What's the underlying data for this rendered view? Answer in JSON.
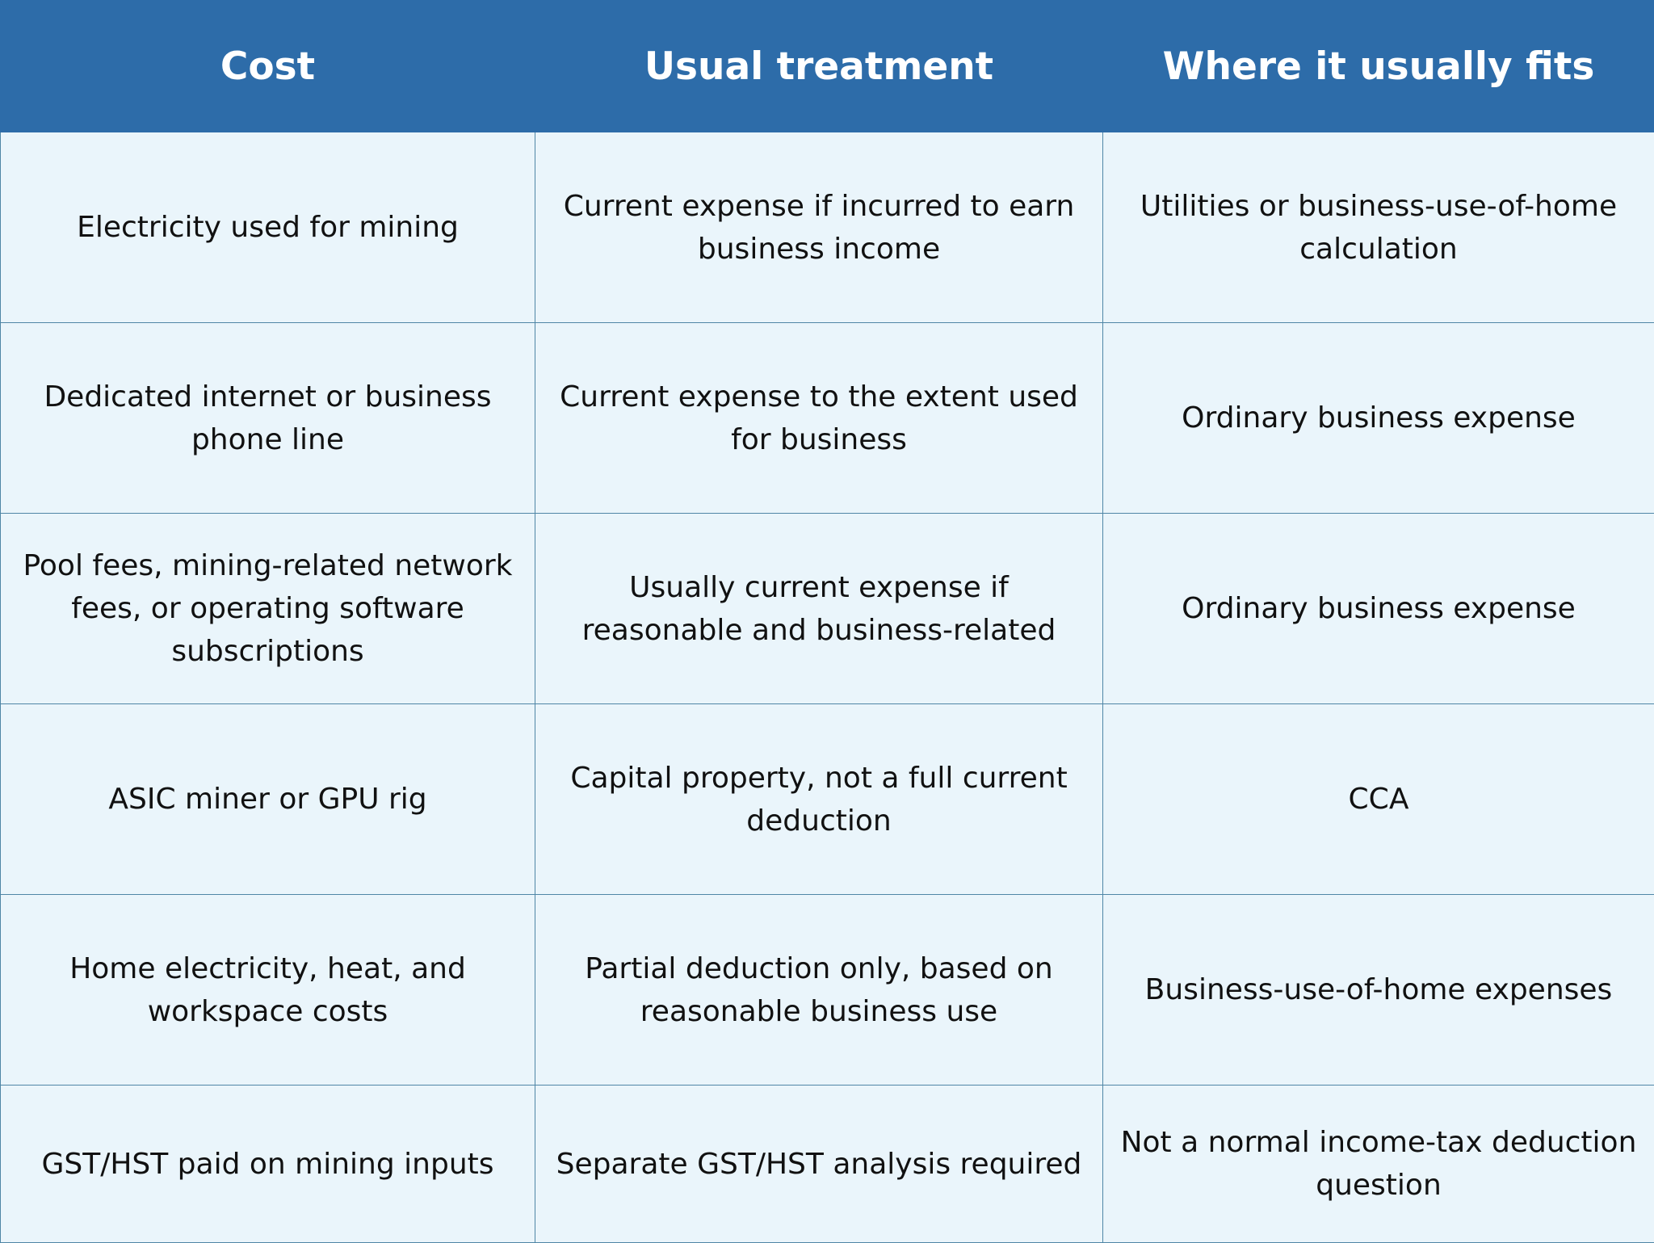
{
  "table": {
    "headers": [
      "Cost",
      "Usual treatment",
      "Where it usually fits"
    ],
    "rows": [
      [
        "Electricity used for mining",
        "Current expense if incurred to earn business income",
        "Utilities or business-use-of-home calculation"
      ],
      [
        "Dedicated internet or business phone line",
        "Current expense to the extent used for business",
        "Ordinary business expense"
      ],
      [
        "Pool fees, mining-related network fees, or operating software subscriptions",
        "Usually current expense if reasonable and business-related",
        "Ordinary business expense"
      ],
      [
        "ASIC miner or GPU rig",
        "Capital property, not a full current deduction",
        "CCA"
      ],
      [
        "Home electricity, heat, and workspace costs",
        "Partial deduction only, based on reasonable business use",
        "Business-use-of-home expenses"
      ],
      [
        "GST/HST paid on mining inputs",
        "Separate GST/HST analysis required",
        "Not a normal income-tax deduction question"
      ]
    ]
  }
}
